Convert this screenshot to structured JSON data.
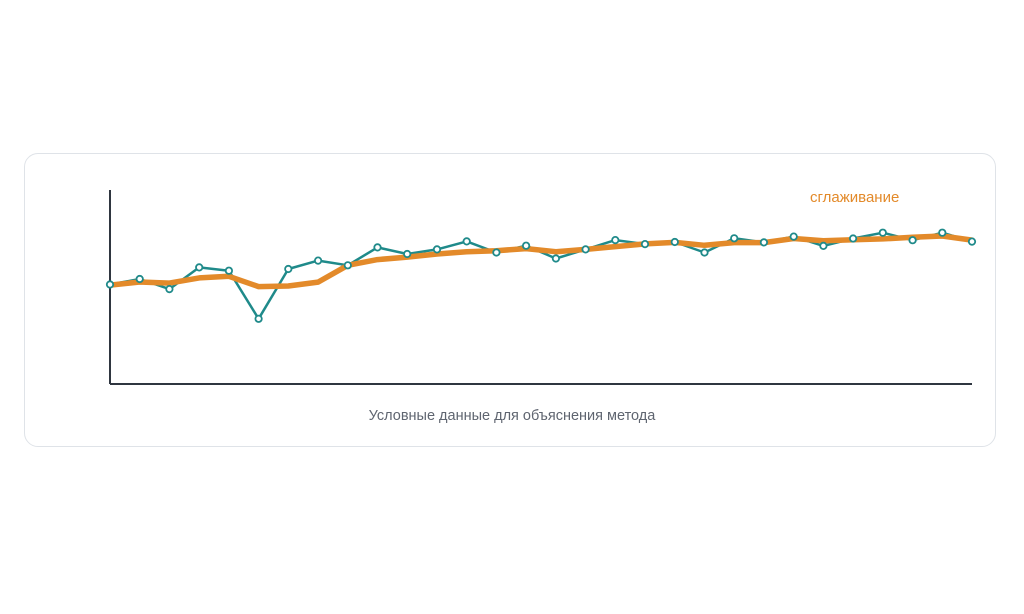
{
  "chart_data": {
    "type": "line",
    "x": [
      1,
      2,
      3,
      4,
      5,
      6,
      7,
      8,
      9,
      10,
      11,
      12,
      13,
      14,
      15,
      16,
      17,
      18,
      19,
      20,
      21,
      22,
      23,
      24,
      25,
      26,
      27,
      28,
      29,
      30
    ],
    "ylim": [
      0,
      100
    ],
    "grid": false,
    "legend_position": "top-right",
    "caption": "Условные данные для объяснения метода",
    "series": [
      {
        "name": "",
        "color": "#1f8a8a",
        "markers": true,
        "values": [
          51.3,
          54.1,
          48.9,
          60.1,
          58.4,
          33.6,
          59.3,
          63.6,
          61.2,
          70.4,
          67.0,
          69.4,
          73.5,
          67.8,
          71.3,
          64.7,
          69.4,
          74.2,
          72.1,
          73.2,
          67.8,
          75.1,
          73.0,
          76.0,
          71.2,
          75.0,
          78.0,
          74.1,
          78.0,
          73.4
        ]
      },
      {
        "name": "сглаживание",
        "color": "#e38a2a",
        "markers": false,
        "values": [
          51.0,
          52.6,
          52.0,
          54.7,
          55.5,
          50.2,
          50.5,
          52.5,
          61.2,
          64.1,
          65.4,
          67.0,
          68.2,
          68.7,
          69.8,
          68.2,
          69.4,
          70.8,
          72.2,
          73.0,
          71.5,
          72.9,
          72.9,
          75.0,
          73.8,
          74.4,
          74.8,
          75.6,
          76.3,
          74.2
        ]
      }
    ]
  }
}
